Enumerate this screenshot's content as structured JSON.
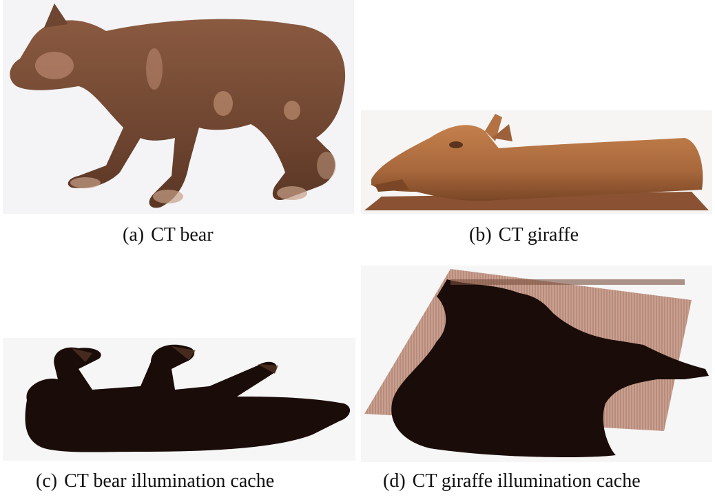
{
  "figure": {
    "panels": [
      {
        "label": "(a)",
        "caption": "CT bear"
      },
      {
        "label": "(b)",
        "caption": "CT giraffe"
      },
      {
        "label": "(c)",
        "caption": "CT bear illumination cache"
      },
      {
        "label": "(d)",
        "caption": "CT giraffe illumination cache"
      }
    ]
  },
  "colors": {
    "bear_fill": "#6e4530",
    "giraffe_fill": "#a8683c",
    "shadow": "#1a0c08",
    "cache_plane": "#c9a090"
  }
}
